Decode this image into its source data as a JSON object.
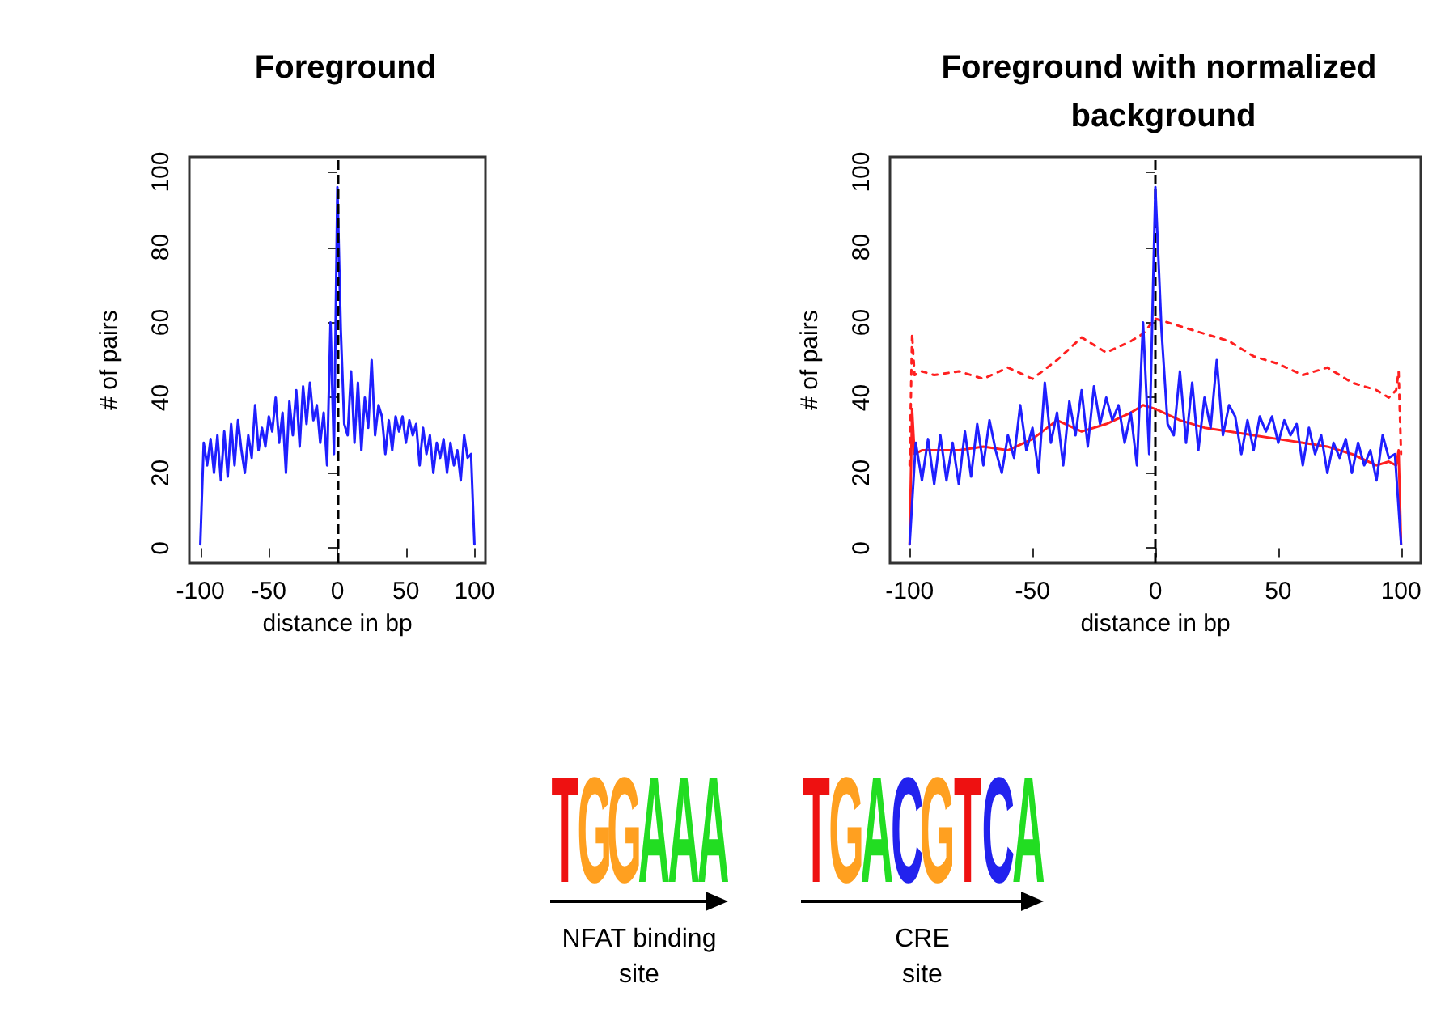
{
  "chart_data": [
    {
      "type": "line",
      "title": "Foreground",
      "xlabel": "distance in bp",
      "ylabel": "# of pairs",
      "xlim": [
        -108,
        108
      ],
      "xticks": [
        -100,
        -50,
        0,
        50,
        100
      ],
      "ylim": [
        -4,
        104
      ],
      "yticks": [
        0,
        20,
        40,
        60,
        80,
        100
      ],
      "grid": false,
      "marker": "none",
      "x": [
        -100,
        -97.5,
        -95,
        -92.5,
        -90,
        -87.5,
        -85,
        -82.5,
        -80,
        -77.5,
        -75,
        -72.5,
        -70,
        -67.5,
        -65,
        -62.5,
        -60,
        -57.5,
        -55,
        -52.5,
        -50,
        -47.5,
        -45,
        -42.5,
        -40,
        -37.5,
        -35,
        -32.5,
        -30,
        -27.5,
        -25,
        -22.5,
        -20,
        -17.5,
        -15,
        -12.5,
        -10,
        -7.5,
        -5,
        -2.5,
        0,
        2.5,
        5,
        7.5,
        10,
        12.5,
        15,
        17.5,
        20,
        22.5,
        25,
        27.5,
        30,
        32.5,
        35,
        37.5,
        40,
        42.5,
        45,
        47.5,
        50,
        52.5,
        55,
        57.5,
        60,
        62.5,
        65,
        67.5,
        70,
        72.5,
        75,
        77.5,
        80,
        82.5,
        85,
        87.5,
        90,
        92.5,
        95,
        97.5,
        100
      ],
      "series": [
        {
          "color": "#1f1fff",
          "line_style": "solid",
          "values": [
            1,
            28,
            22,
            29,
            20,
            30,
            18,
            31,
            19,
            33,
            22,
            34,
            26,
            20,
            30,
            24,
            38,
            26,
            32,
            27,
            35,
            31,
            40,
            28,
            36,
            20,
            39,
            30,
            42,
            27,
            43,
            33,
            44,
            34,
            38,
            28,
            36,
            22,
            60,
            25,
            96,
            58,
            33,
            30,
            47,
            28,
            44,
            26,
            40,
            32,
            50,
            30,
            38,
            35,
            25,
            34,
            26,
            35,
            31,
            35,
            28,
            34,
            30,
            33,
            22,
            32,
            25,
            30,
            20,
            28,
            24,
            29,
            20,
            28,
            22,
            26,
            18,
            30,
            24,
            25,
            1
          ]
        }
      ],
      "ref_lines": [
        {
          "axis": "x",
          "value": 0,
          "color": "#000000",
          "line_style": "dashed"
        }
      ]
    },
    {
      "type": "line",
      "title": "Foreground with normalized background",
      "xlabel": "distance in bp",
      "ylabel": "# of pairs",
      "xlim": [
        -108,
        108
      ],
      "xticks": [
        -100,
        -50,
        0,
        50,
        100
      ],
      "ylim": [
        -4,
        104
      ],
      "yticks": [
        0,
        20,
        40,
        60,
        80,
        100
      ],
      "grid": false,
      "marker": "none",
      "x": [
        -100,
        -97.5,
        -95,
        -92.5,
        -90,
        -87.5,
        -85,
        -82.5,
        -80,
        -77.5,
        -75,
        -72.5,
        -70,
        -67.5,
        -65,
        -62.5,
        -60,
        -57.5,
        -55,
        -52.5,
        -50,
        -47.5,
        -45,
        -42.5,
        -40,
        -37.5,
        -35,
        -32.5,
        -30,
        -27.5,
        -25,
        -22.5,
        -20,
        -17.5,
        -15,
        -12.5,
        -10,
        -7.5,
        -5,
        -2.5,
        0,
        2.5,
        5,
        7.5,
        10,
        12.5,
        15,
        17.5,
        20,
        22.5,
        25,
        27.5,
        30,
        32.5,
        35,
        37.5,
        40,
        42.5,
        45,
        47.5,
        50,
        52.5,
        55,
        57.5,
        60,
        62.5,
        65,
        67.5,
        70,
        72.5,
        75,
        77.5,
        80,
        82.5,
        85,
        87.5,
        90,
        92.5,
        95,
        97.5,
        100
      ],
      "series": [
        {
          "color": "#1f1fff",
          "line_style": "solid",
          "values": [
            1,
            28,
            18,
            29,
            17,
            30,
            18,
            28,
            17,
            31,
            19,
            33,
            22,
            34,
            26,
            20,
            30,
            24,
            38,
            26,
            32,
            20,
            44,
            28,
            36,
            22,
            39,
            30,
            42,
            27,
            43,
            33,
            40,
            34,
            38,
            28,
            36,
            22,
            60,
            25,
            96,
            58,
            33,
            30,
            47,
            28,
            44,
            26,
            40,
            32,
            50,
            30,
            38,
            35,
            25,
            34,
            26,
            35,
            31,
            35,
            28,
            34,
            30,
            33,
            22,
            32,
            25,
            30,
            20,
            28,
            24,
            29,
            20,
            28,
            22,
            26,
            18,
            30,
            24,
            25,
            1
          ]
        },
        {
          "color": "#ff2020",
          "line_style": "solid",
          "x": [
            -100,
            -99,
            -98,
            -95,
            -80,
            -70,
            -60,
            -50,
            -40,
            -30,
            -20,
            -10,
            -5,
            0,
            10,
            20,
            30,
            40,
            50,
            60,
            70,
            80,
            90,
            95,
            98,
            99,
            100
          ],
          "values": [
            1,
            37,
            25,
            26,
            26,
            27,
            26,
            29,
            34,
            31,
            33,
            36,
            38,
            37,
            34,
            32,
            31,
            30,
            29,
            28,
            27,
            25,
            22,
            23,
            22,
            26,
            1
          ]
        },
        {
          "color": "#ff2020",
          "line_style": "dotted",
          "x": [
            -100,
            -99,
            -98,
            -95,
            -90,
            -80,
            -70,
            -60,
            -50,
            -40,
            -30,
            -20,
            -10,
            -5,
            0,
            5,
            10,
            20,
            30,
            40,
            50,
            60,
            70,
            80,
            90,
            95,
            98,
            99,
            100
          ],
          "values": [
            22,
            57,
            46,
            47,
            46,
            47,
            45,
            48,
            45,
            50,
            56,
            52,
            55,
            57,
            61,
            60,
            59,
            57,
            55,
            51,
            49,
            46,
            48,
            44,
            42,
            40,
            42,
            47,
            25
          ]
        }
      ],
      "ref_lines": [
        {
          "axis": "x",
          "value": 0,
          "color": "#000000",
          "line_style": "dashed"
        }
      ]
    },
    {
      "type": "other",
      "annotations": [
        "TGGAAA",
        "NFAT binding site",
        "TGACGTCA",
        "CRE site"
      ]
    }
  ]
}
